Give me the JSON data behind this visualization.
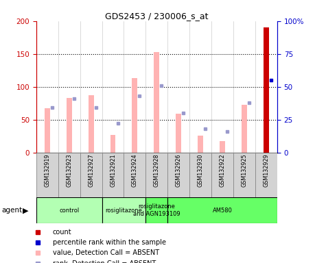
{
  "title": "GDS2453 / 230006_s_at",
  "samples": [
    "GSM132919",
    "GSM132923",
    "GSM132927",
    "GSM132921",
    "GSM132924",
    "GSM132928",
    "GSM132926",
    "GSM132930",
    "GSM132922",
    "GSM132925",
    "GSM132929"
  ],
  "pink_bars": [
    67,
    83,
    87,
    27,
    113,
    153,
    59,
    26,
    17,
    73,
    190
  ],
  "blue_squares": [
    34,
    41,
    34,
    22,
    43,
    51,
    30,
    18,
    16,
    38,
    55
  ],
  "ylim_left": [
    0,
    200
  ],
  "ylim_right": [
    0,
    100
  ],
  "yticks_left": [
    0,
    50,
    100,
    150,
    200
  ],
  "yticks_right": [
    0,
    25,
    50,
    75,
    100
  ],
  "ytick_labels_right": [
    "0",
    "25",
    "50",
    "75",
    "100%"
  ],
  "groups": [
    {
      "label": "control",
      "start": 0,
      "end": 3,
      "color": "#b3ffb3"
    },
    {
      "label": "rosiglitazone",
      "start": 3,
      "end": 5,
      "color": "#b3ffb3"
    },
    {
      "label": "rosiglitazone\nand AGN193109",
      "start": 5,
      "end": 6,
      "color": "#66ff66"
    },
    {
      "label": "AM580",
      "start": 6,
      "end": 11,
      "color": "#66ff66"
    }
  ],
  "bar_color_pink": "#ffb3b3",
  "bar_color_red": "#cc0000",
  "square_color_light": "#9999cc",
  "square_color_dark": "#0000cc",
  "left_axis_color": "#cc0000",
  "right_axis_color": "#0000cc",
  "legend": [
    {
      "color": "#cc0000",
      "label": "count"
    },
    {
      "color": "#0000cc",
      "label": "percentile rank within the sample"
    },
    {
      "color": "#ffb3b3",
      "label": "value, Detection Call = ABSENT"
    },
    {
      "color": "#9999cc",
      "label": "rank, Detection Call = ABSENT"
    }
  ]
}
